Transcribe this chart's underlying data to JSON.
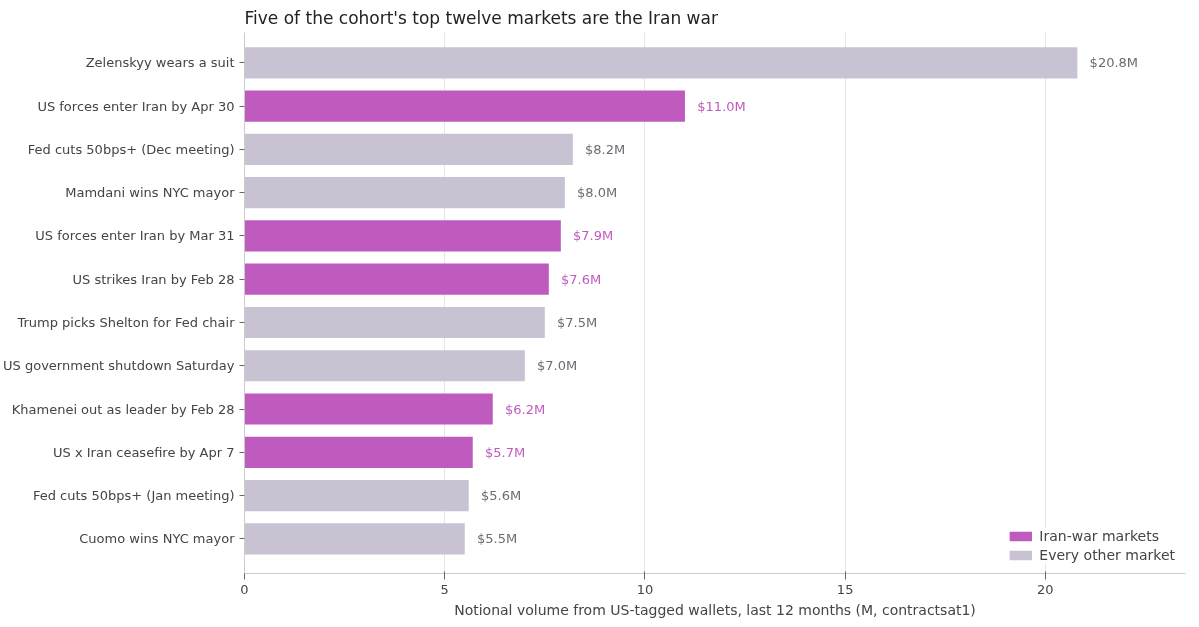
{
  "chart_data": {
    "type": "bar",
    "orientation": "horizontal",
    "title": "Five of the cohort's top twelve markets are the Iran war",
    "xlabel": "Notional volume from US-tagged wallets, last 12 months (M, contractsat1)",
    "categories": [
      "Zelenskyy wears a suit",
      "US forces enter Iran by Apr 30",
      "Fed cuts 50bps+ (Dec meeting)",
      "Mamdani wins NYC mayor",
      "US forces enter Iran by Mar 31",
      "US strikes Iran by Feb 28",
      "Trump picks Shelton for Fed chair",
      "US government shutdown Saturday",
      "Khamenei out as leader by Feb 28",
      "US x Iran ceasefire by Apr 7",
      "Fed cuts 50bps+ (Jan meeting)",
      "Cuomo wins NYC mayor"
    ],
    "series": [
      {
        "name": "Iran-war markets",
        "color": "#bf5bbf",
        "values": [
          null,
          11.0,
          null,
          null,
          7.9,
          7.6,
          null,
          null,
          6.2,
          5.7,
          null,
          null
        ],
        "value_labels": [
          null,
          "$11.0M",
          null,
          null,
          "$7.9M",
          "$7.6M",
          null,
          null,
          "$6.2M",
          "$5.7M",
          null,
          null
        ]
      },
      {
        "name": "Every other market",
        "color": "#c8c2d2",
        "values": [
          20.8,
          null,
          8.2,
          8.0,
          null,
          null,
          7.5,
          7.0,
          null,
          null,
          5.6,
          5.5
        ],
        "value_labels": [
          "$20.8M",
          null,
          "$8.2M",
          "$8.0M",
          null,
          null,
          "$7.5M",
          "$7.0M",
          null,
          null,
          "$5.6M",
          "$5.5M"
        ]
      }
    ],
    "xlim": [
      0,
      23.5
    ],
    "xticks": [
      0,
      5,
      10,
      15,
      20
    ],
    "grid": "x",
    "legend": "bottom right"
  }
}
